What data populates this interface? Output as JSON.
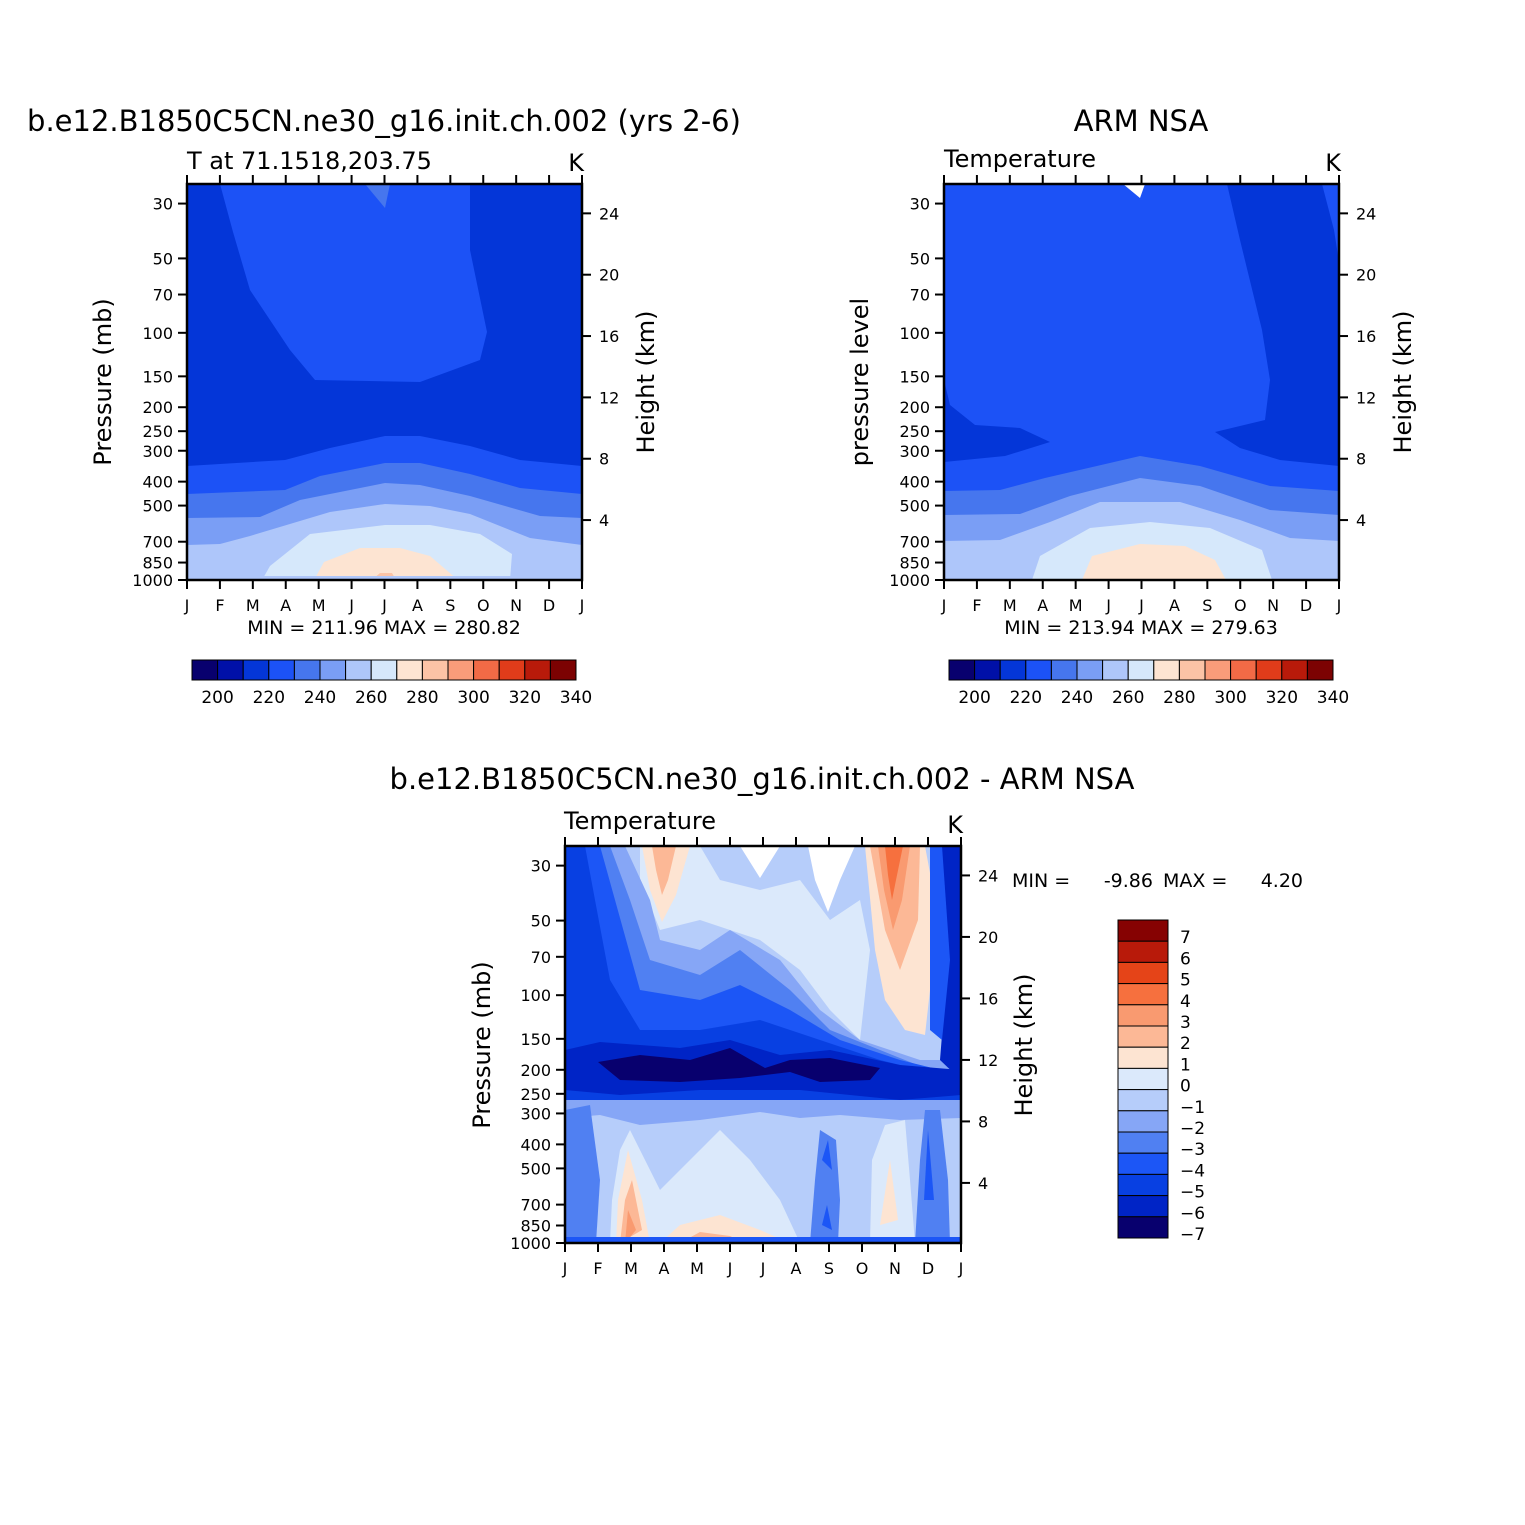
{
  "colors": {
    "temp_palette": [
      "#08006e",
      "#0010a8",
      "#0436d8",
      "#1c52f6",
      "#4676ee",
      "#7a9ef5",
      "#aec6fa",
      "#d6e8fb",
      "#fde4d2",
      "#fcc3a6",
      "#f99c7a",
      "#f26a46",
      "#e03c1a",
      "#b81a0a",
      "#7c0202"
    ],
    "diff_palette": [
      "#08006e",
      "#0024c6",
      "#0840e2",
      "#1c56f6",
      "#5080f2",
      "#86a6f6",
      "#b6cdfa",
      "#dbe9fb",
      "#fde4d2",
      "#fcb896",
      "#f99a70",
      "#f6703e",
      "#e54418",
      "#b81a0a",
      "#860202"
    ]
  },
  "chart_data": [
    {
      "type": "heatmap",
      "title": "b.e12.B1850C5CN.ne30_g16.init.ch.002 (yrs 2-6)",
      "subtitle_left": "T at 71.1518,203.75",
      "subtitle_right": "K",
      "ylabel": "Pressure (mb)",
      "ylabel_right": "Height (km)",
      "x_ticks": [
        "J",
        "F",
        "M",
        "A",
        "M",
        "J",
        "J",
        "A",
        "S",
        "O",
        "N",
        "D",
        "J"
      ],
      "y_ticks": [
        "30",
        "50",
        "70",
        "100",
        "150",
        "200",
        "250",
        "300",
        "400",
        "500",
        "700",
        "850",
        "1000"
      ],
      "y_ticks_right": [
        "24",
        "20",
        "16",
        "12",
        "8",
        "4"
      ],
      "stats": "MIN = 211.96 MAX = 280.82",
      "colorbar_labels": [
        "200",
        "220",
        "240",
        "260",
        "280",
        "300",
        "320",
        "340"
      ],
      "contour_levels": [
        195,
        200,
        205,
        210,
        215,
        220,
        225,
        230,
        235,
        240,
        245,
        250,
        255,
        260,
        265,
        270,
        275,
        280,
        285,
        290,
        295,
        300,
        305,
        310,
        315,
        320,
        325,
        330,
        335,
        340,
        345
      ],
      "values_at_jan_jul": {
        "30": [
          213,
          219
        ],
        "100": [
          212,
          220
        ],
        "200": [
          213,
          218
        ],
        "300": [
          216,
          219
        ],
        "400": [
          222,
          232
        ],
        "500": [
          229,
          241
        ],
        "700": [
          243,
          256
        ],
        "850": [
          249,
          264
        ],
        "1000": [
          254,
          276
        ]
      }
    },
    {
      "type": "heatmap",
      "title": "ARM NSA",
      "subtitle_left": "Temperature",
      "subtitle_right": "K",
      "ylabel": "pressure level",
      "ylabel_right": "Height (km)",
      "x_ticks": [
        "J",
        "F",
        "M",
        "A",
        "M",
        "J",
        "J",
        "A",
        "S",
        "O",
        "N",
        "D",
        "J"
      ],
      "y_ticks": [
        "30",
        "50",
        "70",
        "100",
        "150",
        "200",
        "250",
        "300",
        "400",
        "500",
        "700",
        "850",
        "1000"
      ],
      "y_ticks_right": [
        "24",
        "20",
        "16",
        "12",
        "8",
        "4"
      ],
      "stats": "MIN = 213.94 MAX = 279.63",
      "colorbar_labels": [
        "200",
        "220",
        "240",
        "260",
        "280",
        "300",
        "320",
        "340"
      ],
      "values_at_jan_jul": {
        "30": [
          213,
          219
        ],
        "100": [
          216,
          221
        ],
        "200": [
          213,
          219
        ],
        "300": [
          215,
          219
        ],
        "400": [
          222,
          232
        ],
        "500": [
          229,
          241
        ],
        "700": [
          242,
          257
        ],
        "850": [
          248,
          264
        ],
        "1000": [
          253,
          275
        ]
      }
    },
    {
      "type": "heatmap",
      "title": "b.e12.B1850C5CN.ne30_g16.init.ch.002 - ARM NSA",
      "subtitle_left": "Temperature",
      "subtitle_right": "K",
      "ylabel": "Pressure (mb)",
      "ylabel_right": "Height (km)",
      "x_ticks": [
        "J",
        "F",
        "M",
        "A",
        "M",
        "J",
        "J",
        "A",
        "S",
        "O",
        "N",
        "D",
        "J"
      ],
      "y_ticks": [
        "30",
        "50",
        "70",
        "100",
        "150",
        "200",
        "250",
        "300",
        "400",
        "500",
        "700",
        "850",
        "1000"
      ],
      "y_ticks_right": [
        "24",
        "20",
        "16",
        "12",
        "8",
        "4"
      ],
      "stats_min_label": "MIN =",
      "stats_min": "-9.86",
      "stats_max_label": "MAX =",
      "stats_max": "4.20",
      "colorbar_labels": [
        "7",
        "6",
        "5",
        "4",
        "3",
        "2",
        "1",
        "0",
        "-1",
        "-2",
        "-3",
        "-4",
        "-5",
        "-6",
        "-7"
      ],
      "contour_levels": [
        -7,
        -6,
        -5,
        -4,
        -3,
        -2,
        -1,
        0,
        1,
        2,
        3,
        4,
        5,
        6,
        7
      ],
      "min": -9.86,
      "max": 4.2
    }
  ]
}
